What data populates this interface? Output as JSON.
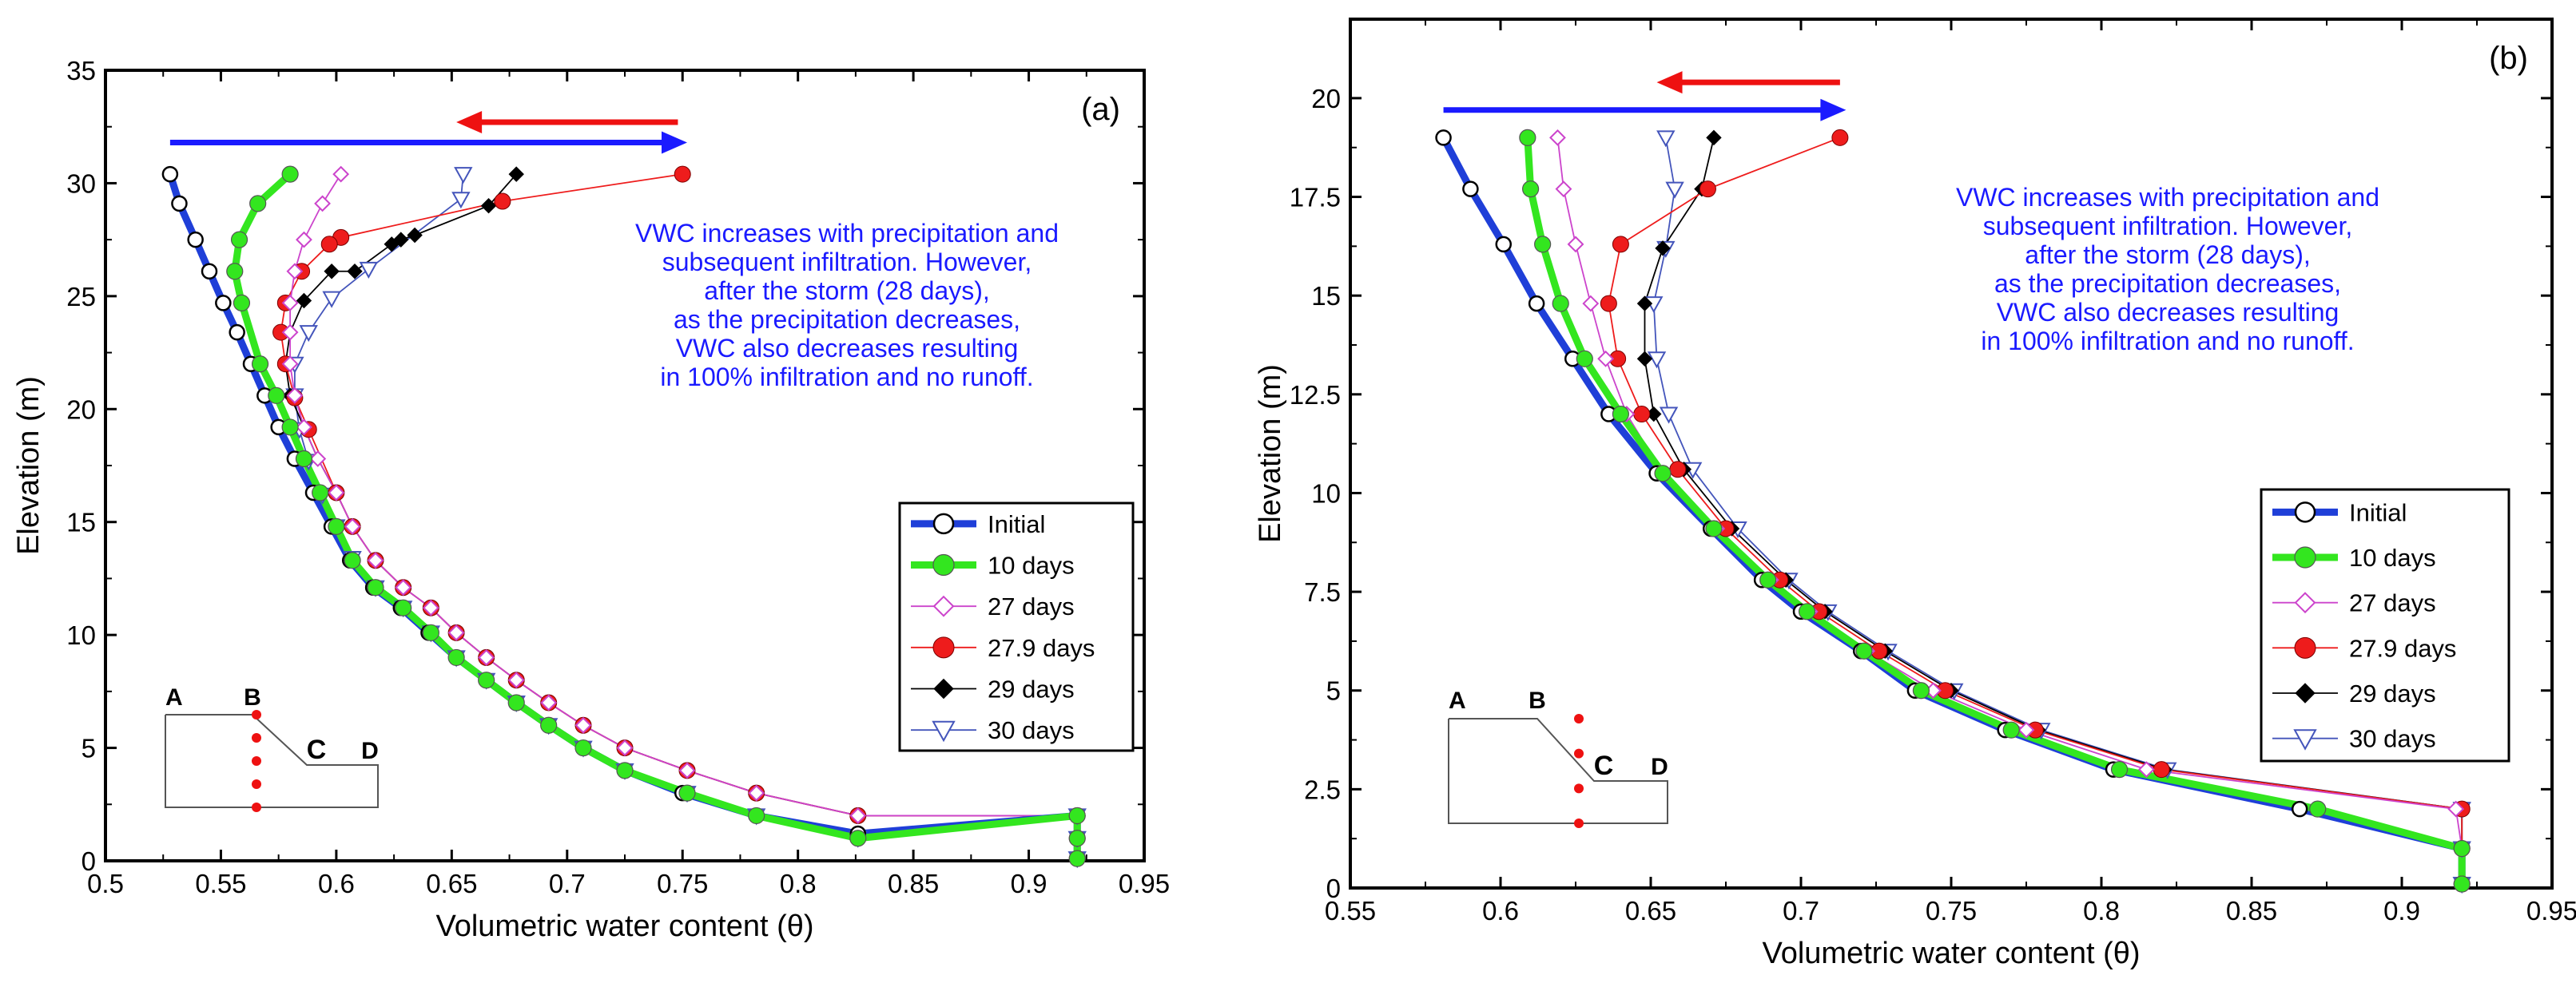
{
  "colors": {
    "initial": "#1f3fd8",
    "d10": "#33e61f",
    "d27": "#cc44cc",
    "d279": "#ee1c1c",
    "d29": "#000000",
    "d30": "#4455bb",
    "blue_arrow": "#1a1aff",
    "red_arrow": "#ee1111",
    "note": "#1a1aff"
  },
  "chart_data": [
    {
      "type": "line",
      "panel_label": "(a)",
      "xlabel": "Volumetric water content (θ)",
      "ylabel": "Elevation (m)",
      "xlim": [
        0.5,
        0.95
      ],
      "ylim": [
        0,
        35
      ],
      "xticks": [
        "0.5",
        "0.55",
        "0.6",
        "0.65",
        "0.7",
        "0.75",
        "0.8",
        "0.85",
        "0.9",
        "0.95"
      ],
      "yticks": [
        "0",
        "5",
        "10",
        "15",
        "20",
        "25",
        "30",
        "35"
      ],
      "annotation": [
        "VWC increases with precipitation and",
        "subsequent infiltration. However,",
        "after the storm (28 days),",
        "as the precipitation decreases,",
        "VWC also decreases resulting",
        "in 100% infiltration and no runoff."
      ],
      "blue_arrow": {
        "from": 0.528,
        "to": 0.752,
        "y": 31.8
      },
      "red_arrow": {
        "from": 0.748,
        "to": 0.652,
        "y": 32.7
      },
      "series": [
        {
          "name": "Initial",
          "x": [
            0.528,
            0.532,
            0.539,
            0.545,
            0.551,
            0.557,
            0.563,
            0.569,
            0.575,
            0.582,
            0.59,
            0.598,
            0.606,
            0.616,
            0.628,
            0.64,
            0.652,
            0.665,
            0.678,
            0.692,
            0.707,
            0.725,
            0.75,
            0.782,
            0.826,
            0.921,
            0.921,
            0.921
          ],
          "y": [
            30.4,
            29.1,
            27.5,
            26.1,
            24.7,
            23.4,
            22.0,
            20.6,
            19.2,
            17.8,
            16.3,
            14.8,
            13.3,
            12.1,
            11.2,
            10.1,
            9.0,
            8.0,
            7.0,
            6.0,
            5.0,
            4.0,
            3.0,
            2.0,
            1.2,
            2.0,
            1.0,
            0.1
          ]
        },
        {
          "name": "10 days",
          "x": [
            0.58,
            0.566,
            0.558,
            0.556,
            0.559,
            0.567,
            0.574,
            0.58,
            0.586,
            0.593,
            0.6,
            0.607,
            0.617,
            0.629,
            0.641,
            0.652,
            0.665,
            0.678,
            0.692,
            0.707,
            0.725,
            0.752,
            0.782,
            0.826,
            0.921,
            0.921,
            0.921
          ],
          "y": [
            30.4,
            29.1,
            27.5,
            26.1,
            24.7,
            22.0,
            20.6,
            19.2,
            17.8,
            16.3,
            14.8,
            13.3,
            12.1,
            11.2,
            10.1,
            9.0,
            8.0,
            7.0,
            6.0,
            5.0,
            4.0,
            3.0,
            2.0,
            1.0,
            2.0,
            1.0,
            0.1
          ]
        },
        {
          "name": "27 days",
          "x": [
            0.602,
            0.594,
            0.586,
            0.582,
            0.58,
            0.58,
            0.58,
            0.582,
            0.586,
            0.592,
            0.6,
            0.607,
            0.617,
            0.629,
            0.641,
            0.652,
            0.665,
            0.678,
            0.692,
            0.707,
            0.725,
            0.752,
            0.782,
            0.826,
            0.921,
            0.921,
            0.921
          ],
          "y": [
            30.4,
            29.1,
            27.5,
            26.1,
            24.7,
            23.4,
            22.0,
            20.6,
            19.2,
            17.8,
            16.3,
            14.8,
            13.3,
            12.1,
            11.2,
            10.1,
            9.0,
            8.0,
            7.0,
            6.0,
            5.0,
            4.0,
            3.0,
            2.0,
            2.0,
            1.0,
            0.1
          ]
        },
        {
          "name": "27.9 days",
          "x": [
            0.75,
            0.672,
            0.602,
            0.597,
            0.585,
            0.578,
            0.576,
            0.578,
            0.582,
            0.588,
            0.6,
            0.607,
            0.617,
            0.629,
            0.641,
            0.652,
            0.665,
            0.678,
            0.692,
            0.707,
            0.725,
            0.752,
            0.782,
            0.826,
            0.921,
            0.921,
            0.921
          ],
          "y": [
            30.4,
            29.2,
            27.6,
            27.3,
            26.1,
            24.7,
            23.4,
            22.0,
            20.5,
            19.1,
            16.3,
            14.8,
            13.3,
            12.1,
            11.2,
            10.1,
            9.0,
            8.0,
            7.0,
            6.0,
            5.0,
            4.0,
            3.0,
            2.0,
            2.0,
            1.0,
            0.1
          ]
        },
        {
          "name": "29 days",
          "x": [
            0.678,
            0.666,
            0.634,
            0.628,
            0.624,
            0.608,
            0.598,
            0.586,
            0.58,
            0.578,
            0.58,
            0.586,
            0.592,
            0.6,
            0.607,
            0.617,
            0.629,
            0.641,
            0.652,
            0.665,
            0.678,
            0.692,
            0.707,
            0.725,
            0.752,
            0.782,
            0.826,
            0.921,
            0.921,
            0.921
          ],
          "y": [
            30.4,
            29.0,
            27.7,
            27.5,
            27.3,
            26.1,
            26.1,
            24.8,
            23.4,
            22.0,
            20.6,
            19.2,
            17.8,
            16.3,
            14.8,
            13.3,
            12.1,
            11.2,
            10.1,
            9.0,
            8.0,
            7.0,
            6.0,
            5.0,
            4.0,
            3.0,
            2.0,
            2.0,
            1.0,
            0.1
          ]
        },
        {
          "name": "30 days",
          "x": [
            0.655,
            0.654,
            0.614,
            0.598,
            0.588,
            0.582,
            0.582,
            0.584,
            0.588,
            0.594,
            0.6,
            0.607,
            0.617,
            0.629,
            0.641,
            0.652,
            0.665,
            0.678,
            0.692,
            0.707,
            0.725,
            0.752,
            0.782,
            0.826,
            0.921,
            0.921,
            0.921
          ],
          "y": [
            30.4,
            29.3,
            26.2,
            24.9,
            23.4,
            22.0,
            20.6,
            19.1,
            17.7,
            16.2,
            14.8,
            13.4,
            12.1,
            11.2,
            10.1,
            9.0,
            8.0,
            7.0,
            6.0,
            5.0,
            4.0,
            3.0,
            2.0,
            1.0,
            2.0,
            1.0,
            0.1
          ]
        }
      ],
      "legend": {
        "position": "lower-right",
        "entries": [
          "Initial",
          "10 days",
          "27 days",
          "27.9 days",
          "29 days",
          "30 days"
        ]
      },
      "inset_labels": {
        "a": "A",
        "b": "B",
        "c": "C",
        "d": "D"
      }
    },
    {
      "type": "line",
      "panel_label": "(b)",
      "xlabel": "Volumetric water content (θ)",
      "ylabel": "Elevation (m)",
      "xlim": [
        0.55,
        0.95
      ],
      "ylim": [
        0,
        22
      ],
      "xticks": [
        "0.55",
        "0.6",
        "0.65",
        "0.7",
        "0.75",
        "0.8",
        "0.85",
        "0.9",
        "0.95"
      ],
      "yticks": [
        "0",
        "2.5",
        "5",
        "7.5",
        "10",
        "12.5",
        "15",
        "17.5",
        "20"
      ],
      "annotation": [
        "VWC increases with precipitation and",
        "subsequent infiltration. However,",
        "after the storm (28 days),",
        "as the precipitation decreases,",
        "VWC also decreases resulting",
        "in 100% infiltration and no runoff."
      ],
      "blue_arrow": {
        "from": 0.581,
        "to": 0.715,
        "y": 19.7
      },
      "red_arrow": {
        "from": 0.713,
        "to": 0.652,
        "y": 20.4
      },
      "series": [
        {
          "name": "Initial",
          "x": [
            0.581,
            0.59,
            0.601,
            0.612,
            0.624,
            0.636,
            0.652,
            0.67,
            0.687,
            0.7,
            0.72,
            0.738,
            0.768,
            0.804,
            0.866,
            0.92,
            0.92
          ],
          "y": [
            19.0,
            17.7,
            16.3,
            14.8,
            13.4,
            12.0,
            10.5,
            9.1,
            7.8,
            7.0,
            6.0,
            5.0,
            4.0,
            3.0,
            2.0,
            1.0,
            0.1
          ]
        },
        {
          "name": "10 days",
          "x": [
            0.609,
            0.61,
            0.614,
            0.62,
            0.628,
            0.64,
            0.654,
            0.671,
            0.689,
            0.702,
            0.721,
            0.74,
            0.77,
            0.806,
            0.872,
            0.92,
            0.92
          ],
          "y": [
            19.0,
            17.7,
            16.3,
            14.8,
            13.4,
            12.0,
            10.5,
            9.1,
            7.8,
            7.0,
            6.0,
            5.0,
            4.0,
            3.0,
            2.0,
            1.0,
            0.1
          ]
        },
        {
          "name": "27 days",
          "x": [
            0.619,
            0.621,
            0.625,
            0.63,
            0.635,
            0.642,
            0.654,
            0.672,
            0.69,
            0.703,
            0.722,
            0.744,
            0.775,
            0.815,
            0.918,
            0.92,
            0.92
          ],
          "y": [
            19.0,
            17.7,
            16.3,
            14.8,
            13.4,
            12.0,
            10.5,
            9.1,
            7.8,
            7.0,
            6.0,
            5.0,
            4.0,
            3.0,
            2.0,
            1.0,
            0.1
          ]
        },
        {
          "name": "27.9 days",
          "x": [
            0.713,
            0.669,
            0.64,
            0.636,
            0.639,
            0.647,
            0.659,
            0.675,
            0.693,
            0.706,
            0.726,
            0.748,
            0.778,
            0.82,
            0.92,
            0.92,
            0.92
          ],
          "y": [
            19.0,
            17.7,
            16.3,
            14.8,
            13.4,
            12.0,
            10.6,
            9.1,
            7.8,
            7.0,
            6.0,
            5.0,
            4.0,
            3.0,
            2.0,
            1.0,
            0.1
          ]
        },
        {
          "name": "29 days",
          "x": [
            0.671,
            0.667,
            0.654,
            0.648,
            0.648,
            0.651,
            0.661,
            0.677,
            0.695,
            0.708,
            0.728,
            0.75,
            0.779,
            0.821,
            0.92,
            0.92,
            0.92
          ],
          "y": [
            19.0,
            17.7,
            16.2,
            14.8,
            13.4,
            12.0,
            10.6,
            9.1,
            7.8,
            7.0,
            6.0,
            5.0,
            4.0,
            3.0,
            2.0,
            1.0,
            0.1
          ]
        },
        {
          "name": "30 days",
          "x": [
            0.655,
            0.658,
            0.655,
            0.651,
            0.652,
            0.656,
            0.664,
            0.679,
            0.696,
            0.709,
            0.729,
            0.751,
            0.78,
            0.822,
            0.92,
            0.92,
            0.92
          ],
          "y": [
            19.0,
            17.7,
            16.2,
            14.8,
            13.4,
            12.0,
            10.6,
            9.1,
            7.8,
            7.0,
            6.0,
            5.0,
            4.0,
            3.0,
            2.0,
            1.0,
            0.1
          ]
        }
      ],
      "legend": {
        "position": "lower-right",
        "entries": [
          "Initial",
          "10 days",
          "27 days",
          "27.9 days",
          "29 days",
          "30 days"
        ]
      },
      "inset_labels": {
        "a": "A",
        "b": "B",
        "c": "C",
        "d": "D"
      }
    }
  ]
}
